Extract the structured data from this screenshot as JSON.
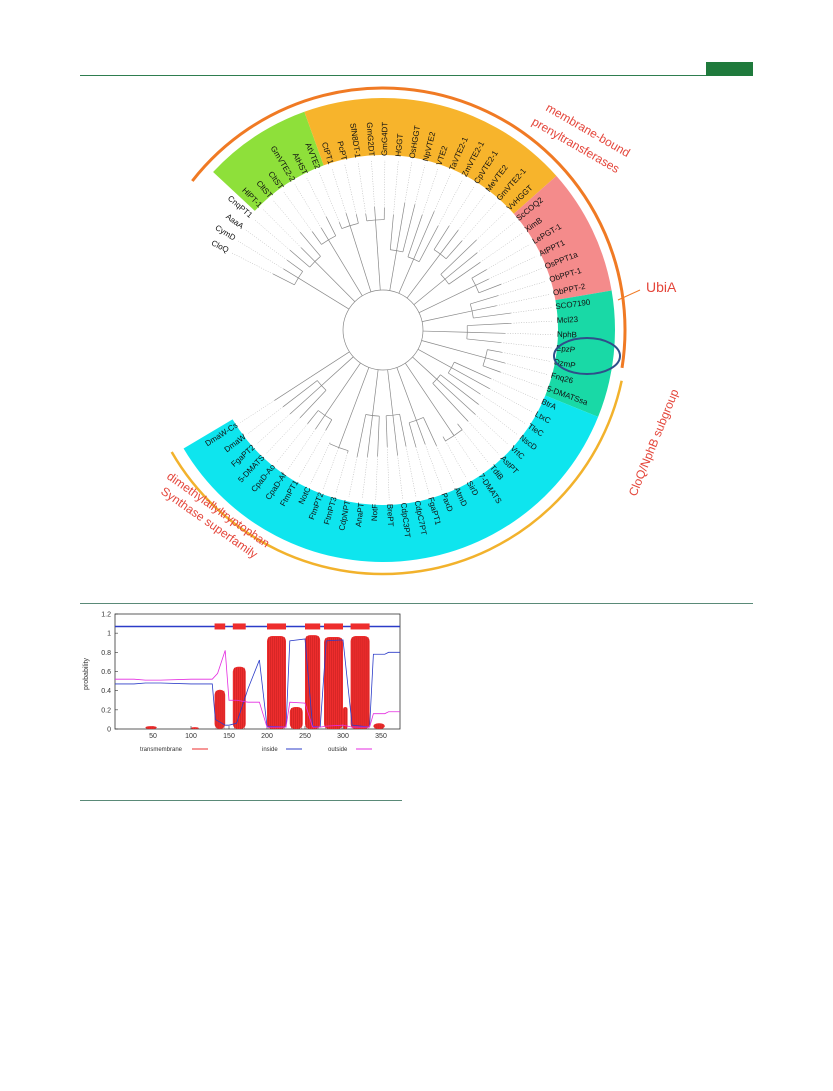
{
  "tree": {
    "groups": [
      {
        "id": "green",
        "color": "#8ee03a",
        "leaves": [
          "HlPT-1",
          "CltST",
          "CltST",
          "GmVTE2-2",
          "AtHST",
          "AtVTE2"
        ]
      },
      {
        "id": "orange",
        "color": "#f7b42c",
        "leaves": [
          "CtPT1",
          "PcPT",
          "SfN8DT-1",
          "GmG2DT",
          "GmG4DT",
          "HGGT",
          "OsHGGT",
          "NpVTE2",
          "VTE2",
          "TaVTE2-1",
          "ZmVTE2-1",
          "CpVTE2-1",
          "MeVTE2",
          "GmVTE2-1",
          "VvHGGT"
        ]
      },
      {
        "id": "pink",
        "color": "#f48b8b",
        "leaves": [
          "ScCOQ2",
          "XimB",
          "LePGT-1",
          "AtPPT1",
          "OsPPT1a",
          "ObPPT-1",
          "ObPPT-2"
        ]
      },
      {
        "id": "teal",
        "color": "#19d9a6",
        "leaves": [
          "SCO7190",
          "Mcl23",
          "NphB",
          "EpzP",
          "DzmP",
          "Fnq26",
          "5-DMATSsa"
        ]
      },
      {
        "id": "cyan",
        "color": "#0ee5ee",
        "leaves": [
          "BtrA",
          "LtxC",
          "TleC",
          "NscD",
          "VrtC",
          "AstPT",
          "TdiB",
          "7-DMATS",
          "SirD",
          "AtmD",
          "PaxD",
          "FgaPT1",
          "CdpC7PT",
          "CdpC3PT",
          "BrePT",
          "NotF",
          "AnaPT",
          "CdpNPT",
          "FtmPT3",
          "FtmPT2",
          "NotC",
          "FtmPT1",
          "CpaD-Af",
          "CpaD-Ao",
          "5-DMATS",
          "FgaPT2",
          "DmaW",
          "DmaW-Cs"
        ]
      }
    ],
    "unshaded_leaves": [
      "CnqPT1",
      "AaaA",
      "CymD",
      "CloQ"
    ],
    "group_labels": {
      "membrane_line1": "membrane-bound",
      "membrane_line2": "prenyltransferases",
      "ubia": "UbiA",
      "cloq": "CloQ/NphB subgroup",
      "dmats_line1": "dimethylallyltryptophan",
      "dmats_line2": "Synthase   superfamily"
    },
    "colors": {
      "arc_orange": "#f07a24",
      "arc_yellow": "#f2b22c",
      "highlight_ring": "#2f4f8a",
      "label_red": "#e4463b"
    }
  },
  "tm_plot": {
    "chart_data": {
      "type": "line",
      "xlabel": "",
      "ylabel": "probability",
      "xlim": [
        0,
        375
      ],
      "ylim": [
        0,
        1.2
      ],
      "x_ticks": [
        "50",
        "100",
        "150",
        "200",
        "250",
        "300",
        "350"
      ],
      "y_ticks": [
        "0",
        "0.2",
        "0.4",
        "0.6",
        "0.8",
        "1",
        "1.2"
      ],
      "legend": {
        "placement": "bottom",
        "entries": [
          "transmembrane",
          "inside",
          "outside"
        ]
      },
      "series": [
        {
          "name": "transmembrane",
          "color": "#ee2d2d",
          "segments": [
            [
              40,
              55,
              0.03
            ],
            [
              100,
              110,
              0.02
            ],
            [
              131,
              145,
              0.41
            ],
            [
              155,
              172,
              0.65
            ],
            [
              200,
              225,
              0.97
            ],
            [
              230,
              247,
              0.23
            ],
            [
              250,
              270,
              0.98
            ],
            [
              275,
              300,
              0.96
            ],
            [
              300,
              306,
              0.23
            ],
            [
              310,
              335,
              0.97
            ],
            [
              340,
              355,
              0.06
            ]
          ]
        },
        {
          "name": "inside",
          "color": "#2c3cc8",
          "x": [
            0,
            25,
            40,
            60,
            100,
            128,
            132,
            145,
            150,
            160,
            175,
            190,
            200,
            225,
            230,
            250,
            260,
            270,
            278,
            300,
            312,
            335,
            340,
            355,
            360,
            375
          ],
          "y": [
            0.47,
            0.47,
            0.48,
            0.48,
            0.47,
            0.47,
            0.1,
            0.04,
            0.04,
            0.06,
            0.42,
            0.72,
            0.03,
            0.02,
            0.92,
            0.94,
            0.03,
            0.02,
            0.92,
            0.93,
            0.04,
            0.02,
            0.78,
            0.78,
            0.8,
            0.8
          ]
        },
        {
          "name": "outside",
          "color": "#e42be0",
          "x": [
            0,
            25,
            40,
            60,
            100,
            128,
            135,
            145,
            150,
            160,
            175,
            190,
            200,
            225,
            230,
            250,
            260,
            270,
            278,
            300,
            312,
            335,
            340,
            355,
            360,
            375
          ],
          "y": [
            0.52,
            0.52,
            0.51,
            0.51,
            0.52,
            0.52,
            0.58,
            0.82,
            0.3,
            0.3,
            0.28,
            0.28,
            0.02,
            0.02,
            0.28,
            0.27,
            0.02,
            0.02,
            0.03,
            0.04,
            0.02,
            0.02,
            0.16,
            0.16,
            0.18,
            0.18
          ]
        }
      ],
      "topology_bar": {
        "color_tm": "#ee2d2d",
        "color_line": "#2c3cc8",
        "tm_ranges": [
          [
            131,
            145
          ],
          [
            155,
            172
          ],
          [
            200,
            225
          ],
          [
            250,
            270
          ],
          [
            275,
            300
          ],
          [
            310,
            335
          ]
        ]
      }
    }
  }
}
